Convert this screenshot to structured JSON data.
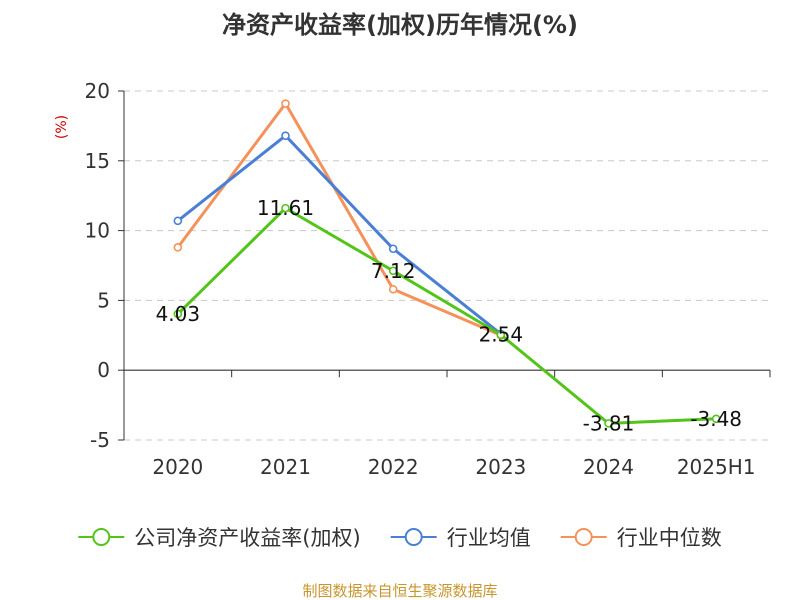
{
  "chart_data": {
    "type": "line",
    "title": "净资产收益率(加权)历年情况(%)",
    "ylabel": "(%)",
    "xlabel": "",
    "categories": [
      "2020",
      "2021",
      "2022",
      "2023",
      "2024",
      "2025H1"
    ],
    "ylim": [
      -5,
      20
    ],
    "yticks": [
      20,
      15,
      10,
      5,
      0,
      -5
    ],
    "grid": true,
    "legend_position": "bottom",
    "series": [
      {
        "name": "公司净资产收益率(加权)",
        "color": "#52c41a",
        "values": [
          4.03,
          11.61,
          7.12,
          2.54,
          -3.81,
          -3.48
        ],
        "labels": [
          "4.03",
          "11.61",
          "7.12",
          "2.54",
          "-3.81",
          "-3.48"
        ]
      },
      {
        "name": "行业均值",
        "color": "#4a7fd4",
        "values": [
          10.7,
          16.8,
          8.7,
          2.6,
          null,
          null
        ]
      },
      {
        "name": "行业中位数",
        "color": "#f4925a",
        "values": [
          8.8,
          19.1,
          5.8,
          2.5,
          null,
          null
        ]
      }
    ]
  },
  "source": "制图数据来自恒生聚源数据库"
}
